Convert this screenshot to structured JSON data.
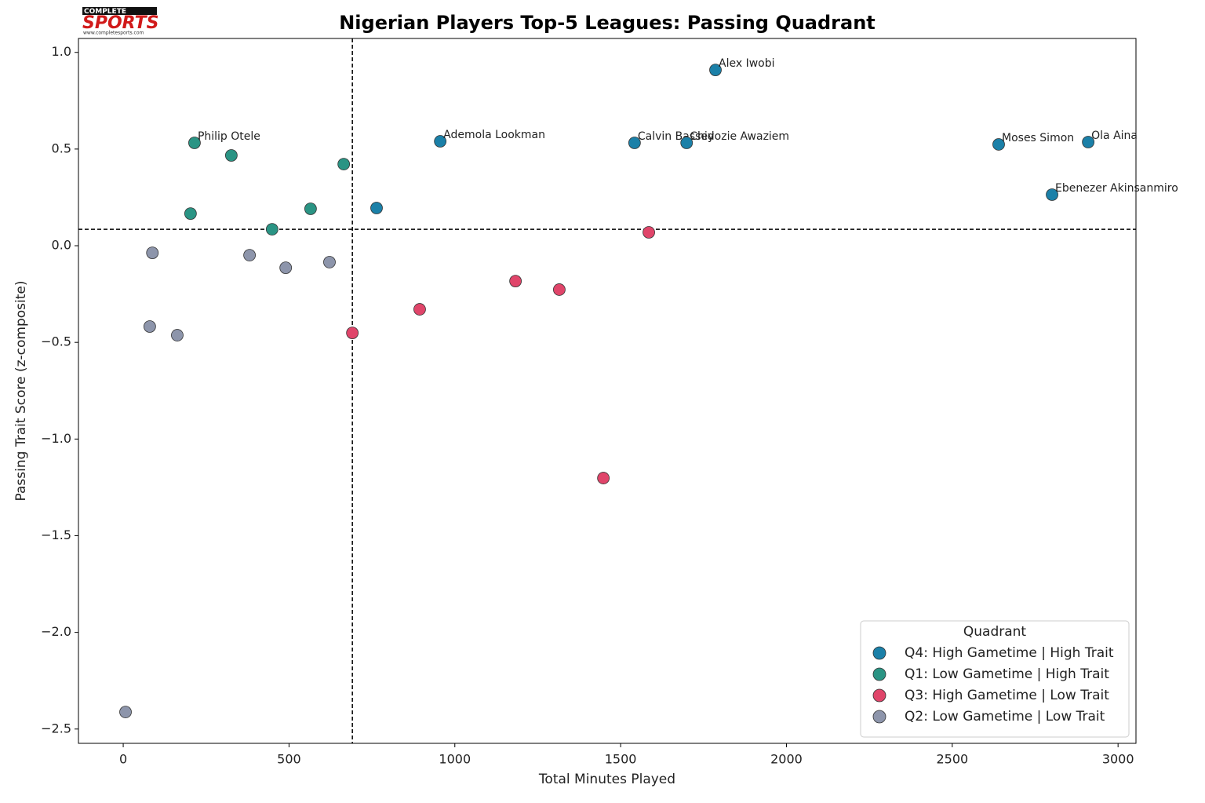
{
  "logo": {
    "top": "COMPLETE",
    "name": "SPORTS",
    "url": "www.completesports.com"
  },
  "chart_data": {
    "type": "scatter",
    "title": "Nigerian Players Top-5 Leagues: Passing Quadrant",
    "x_label": "Total Minutes Played",
    "y_label": "Passing Trait Score (z-composite)",
    "xlim": [
      -135,
      3054
    ],
    "ylim": [
      -2.574,
      1.072
    ],
    "xticks": [
      0,
      500,
      1000,
      1500,
      2000,
      2500,
      3000
    ],
    "yticks": [
      {
        "value": 1.0,
        "label": "1.0"
      },
      {
        "value": 0.5,
        "label": "0.5"
      },
      {
        "value": 0.0,
        "label": "0.0"
      },
      {
        "value": -0.5,
        "label": "−0.5"
      },
      {
        "value": -1.0,
        "label": "−1.0"
      },
      {
        "value": -1.5,
        "label": "−1.5"
      },
      {
        "value": -2.0,
        "label": "−2.0"
      },
      {
        "value": -2.5,
        "label": "−2.5"
      }
    ],
    "quadrant_lines": {
      "x": 691,
      "y": 0.085
    },
    "legend_title": "Quadrant",
    "legend_position": "lower right",
    "series": [
      {
        "name": "Q4: High Gametime | High Trait",
        "color": "#1b80a8",
        "x": [
          1786,
          956,
          1542,
          1699,
          2640,
          2910,
          2801,
          764
        ],
        "values": [
          0.909,
          0.54,
          0.532,
          0.532,
          0.524,
          0.536,
          0.264,
          0.195
        ],
        "labels": [
          "Alex Iwobi",
          "Ademola Lookman",
          "Calvin Bassey",
          "Chidozie Awaziem",
          "Moses Simon",
          "Ola Aina",
          "Ebenezer Akinsanmiro",
          null
        ]
      },
      {
        "name": "Q1: Low Gametime | High Trait",
        "color": "#2a9484",
        "x": [
          215,
          326,
          665,
          203,
          565,
          449
        ],
        "values": [
          0.532,
          0.467,
          0.422,
          0.166,
          0.191,
          0.085
        ],
        "labels": [
          "Philip Otele",
          null,
          null,
          null,
          null,
          null
        ]
      },
      {
        "name": "Q3: High Gametime | Low Trait",
        "color": "#e0456a",
        "x": [
          1585,
          1183,
          1315,
          894,
          691,
          1448
        ],
        "values": [
          0.069,
          -0.183,
          -0.227,
          -0.329,
          -0.451,
          -1.202
        ]
      },
      {
        "name": "Q2: Low Gametime | Low Trait",
        "color": "#8d95ab",
        "x": [
          88,
          381,
          490,
          622,
          80,
          163,
          7
        ],
        "values": [
          -0.037,
          -0.049,
          -0.114,
          -0.085,
          -0.418,
          -0.463,
          -2.412
        ]
      }
    ]
  }
}
